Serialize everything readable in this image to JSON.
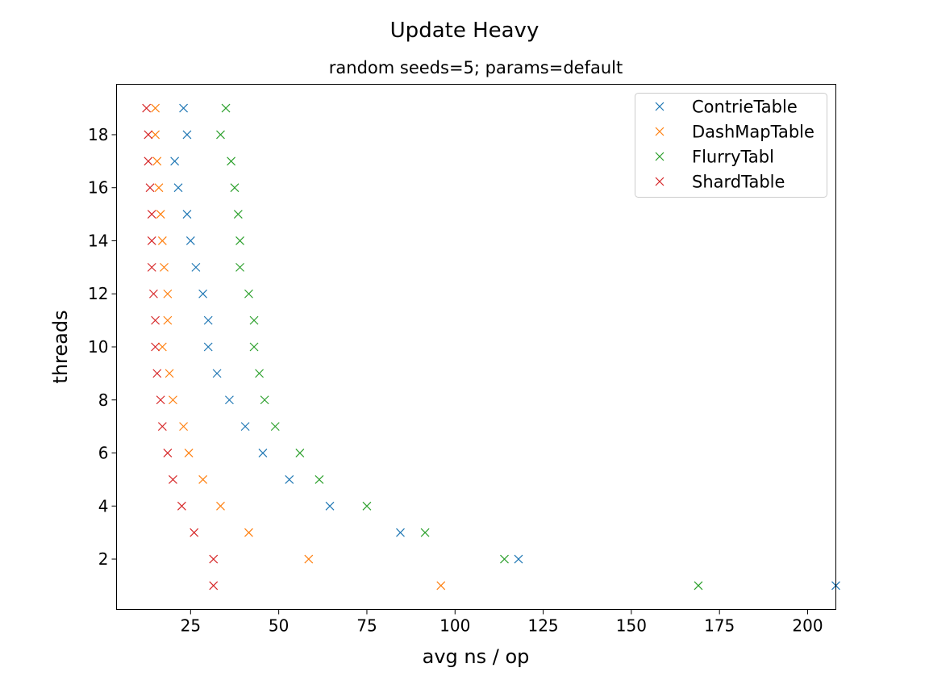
{
  "chart_data": {
    "type": "scatter",
    "title": "Update Heavy",
    "subtitle": "random seeds=5; params=default",
    "xlabel": "avg ns / op",
    "ylabel": "threads",
    "xlim": [
      4,
      208
    ],
    "ylim": [
      0.1,
      19.9
    ],
    "xticks": [
      25,
      50,
      75,
      100,
      125,
      150,
      175,
      200
    ],
    "yticks": [
      2,
      4,
      6,
      8,
      10,
      12,
      14,
      16,
      18
    ],
    "marker": "x",
    "grid": false,
    "legend_position": "top-right",
    "series": [
      {
        "name": "ContrieTable",
        "color": "#1f77b4",
        "points": [
          [
            208,
            1
          ],
          [
            118,
            2
          ],
          [
            84.5,
            3
          ],
          [
            64.5,
            4
          ],
          [
            53,
            5
          ],
          [
            45.5,
            6
          ],
          [
            40.5,
            7
          ],
          [
            36,
            8
          ],
          [
            32.5,
            9
          ],
          [
            30,
            10
          ],
          [
            30,
            11
          ],
          [
            28.5,
            12
          ],
          [
            26.5,
            13
          ],
          [
            25,
            14
          ],
          [
            24,
            15
          ],
          [
            21.5,
            16
          ],
          [
            20.5,
            17
          ],
          [
            24,
            18
          ],
          [
            23,
            19
          ]
        ]
      },
      {
        "name": "DashMapTable",
        "color": "#ff7f0e",
        "points": [
          [
            96,
            1
          ],
          [
            58.5,
            2
          ],
          [
            41.5,
            3
          ],
          [
            33.5,
            4
          ],
          [
            28.5,
            5
          ],
          [
            24.5,
            6
          ],
          [
            23,
            7
          ],
          [
            20,
            8
          ],
          [
            19,
            9
          ],
          [
            17,
            10
          ],
          [
            18.5,
            11
          ],
          [
            18.5,
            12
          ],
          [
            17.5,
            13
          ],
          [
            17,
            14
          ],
          [
            16.5,
            15
          ],
          [
            16,
            16
          ],
          [
            15.5,
            17
          ],
          [
            15,
            18
          ],
          [
            15,
            19
          ]
        ]
      },
      {
        "name": "FlurryTabl",
        "color": "#2ca02c",
        "points": [
          [
            169,
            1
          ],
          [
            114,
            2
          ],
          [
            91.5,
            3
          ],
          [
            75,
            4
          ],
          [
            61.5,
            5
          ],
          [
            56,
            6
          ],
          [
            49,
            7
          ],
          [
            46,
            8
          ],
          [
            44.5,
            9
          ],
          [
            43,
            10
          ],
          [
            43,
            11
          ],
          [
            41.5,
            12
          ],
          [
            39,
            13
          ],
          [
            39,
            14
          ],
          [
            38.5,
            15
          ],
          [
            37.5,
            16
          ],
          [
            36.5,
            17
          ],
          [
            33.5,
            18
          ],
          [
            35,
            19
          ]
        ]
      },
      {
        "name": "ShardTable",
        "color": "#d62728",
        "points": [
          [
            31.5,
            1
          ],
          [
            31.5,
            2
          ],
          [
            26,
            3
          ],
          [
            22.5,
            4
          ],
          [
            20,
            5
          ],
          [
            18.5,
            6
          ],
          [
            17,
            7
          ],
          [
            16.5,
            8
          ],
          [
            15.5,
            9
          ],
          [
            15,
            10
          ],
          [
            15,
            11
          ],
          [
            14.5,
            12
          ],
          [
            14,
            13
          ],
          [
            14,
            14
          ],
          [
            14,
            15
          ],
          [
            13.5,
            16
          ],
          [
            13,
            17
          ],
          [
            13,
            18
          ],
          [
            12.5,
            19
          ]
        ]
      }
    ]
  }
}
